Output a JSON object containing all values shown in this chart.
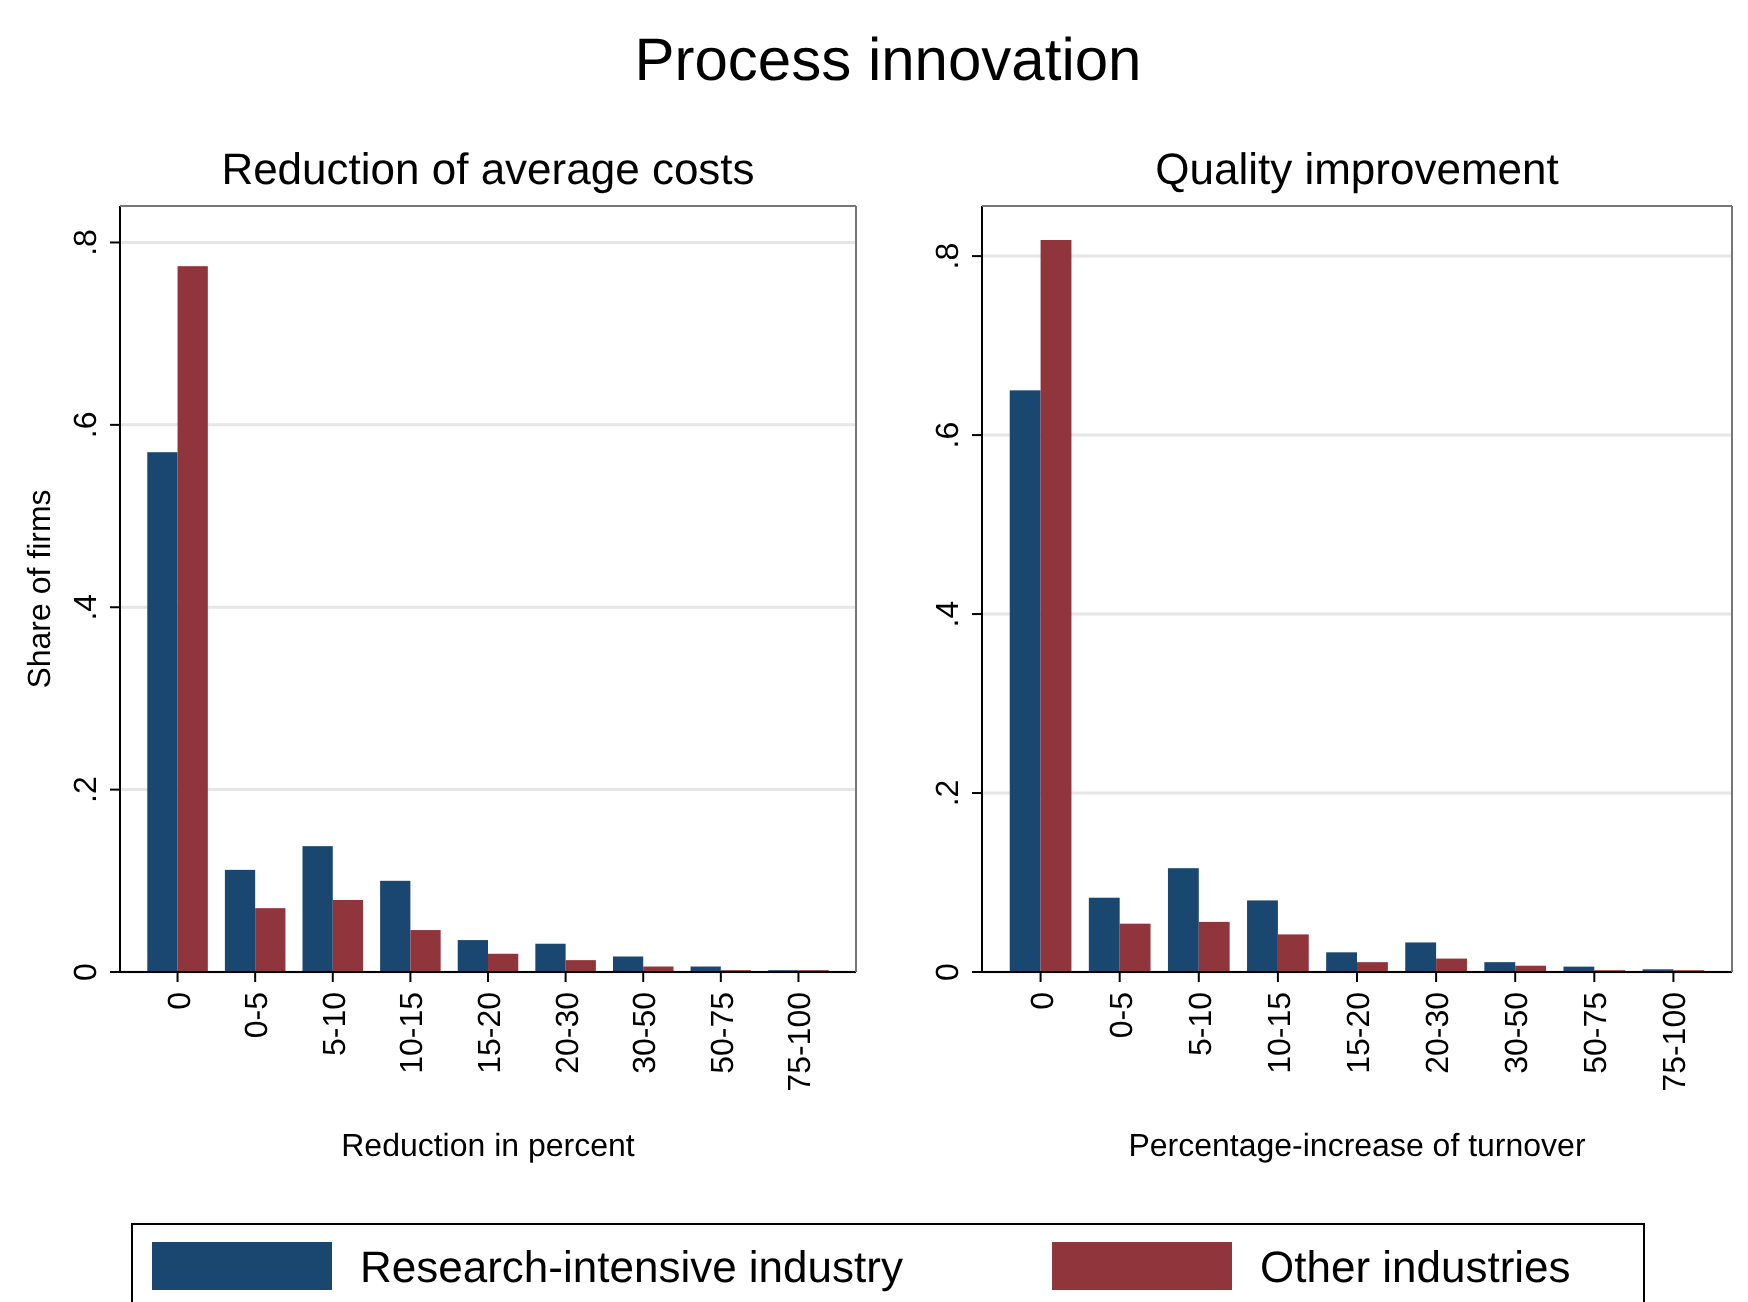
{
  "chart_data": [
    {
      "type": "bar",
      "title": "Reduction of average costs",
      "xlabel": "Reduction in percent",
      "ylabel": "Share of firms",
      "annotations": [
        "Process innovation"
      ],
      "categories": [
        "0",
        "0-5",
        "5-10",
        "10-15",
        "15-20",
        "20-30",
        "30-50",
        "50-75",
        "75-100"
      ],
      "series": [
        {
          "name": "Research-intensive industry",
          "color": "#1a476f",
          "values": [
            0.57,
            0.112,
            0.138,
            0.1,
            0.035,
            0.031,
            0.017,
            0.006,
            0.002
          ]
        },
        {
          "name": "Other industries",
          "color": "#90353b",
          "values": [
            0.774,
            0.07,
            0.079,
            0.046,
            0.02,
            0.013,
            0.006,
            0.002,
            0.002
          ]
        }
      ],
      "ylim": [
        0,
        0.84
      ],
      "yticks": [
        {
          "value": 0,
          "label": "0"
        },
        {
          "value": 0.2,
          "label": ".2"
        },
        {
          "value": 0.4,
          "label": ".4"
        },
        {
          "value": 0.6,
          "label": ".6"
        },
        {
          "value": 0.8,
          "label": ".8"
        }
      ],
      "grid": "y",
      "legend": "bottom"
    },
    {
      "type": "bar",
      "title": "Quality improvement",
      "xlabel": "Percentage-increase of turnover",
      "categories": [
        "0",
        "0-5",
        "5-10",
        "10-15",
        "15-20",
        "20-30",
        "30-50",
        "50-75",
        "75-100"
      ],
      "series": [
        {
          "color": "#1a476f",
          "values": [
            0.65,
            0.083,
            0.116,
            0.08,
            0.022,
            0.033,
            0.011,
            0.006,
            0.003
          ]
        },
        {
          "color": "#90353b",
          "values": [
            0.818,
            0.054,
            0.056,
            0.042,
            0.011,
            0.015,
            0.007,
            0.002,
            0.002
          ]
        }
      ],
      "ylim": [
        0,
        0.856
      ],
      "yticks": [
        {
          "value": 0,
          "label": "0"
        },
        {
          "value": 0.2,
          "label": ".2"
        },
        {
          "value": 0.4,
          "label": ".4"
        },
        {
          "value": 0.6,
          "label": ".6"
        },
        {
          "value": 0.8,
          "label": ".8"
        }
      ],
      "grid": "y"
    }
  ]
}
